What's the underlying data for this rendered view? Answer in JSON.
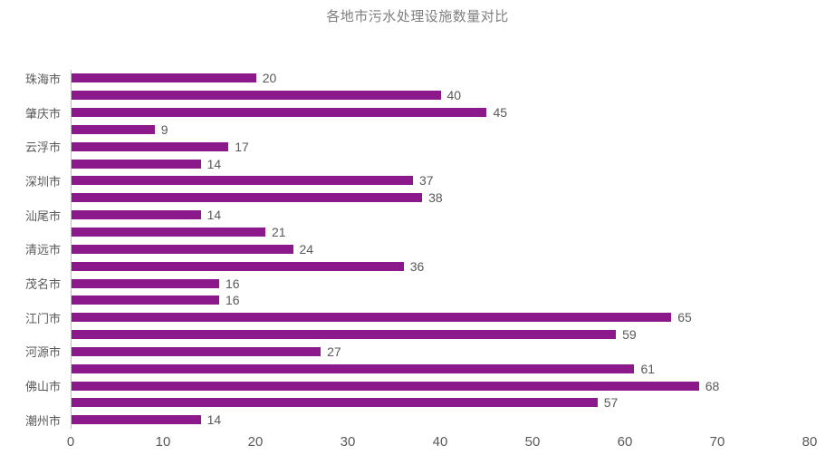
{
  "chart_data": {
    "type": "bar",
    "orientation": "horizontal",
    "title": "各地市污水处理设施数量对比",
    "xlabel": "",
    "ylabel": "",
    "xlim": [
      0,
      80
    ],
    "x_ticks": [
      0,
      10,
      20,
      30,
      40,
      50,
      60,
      70,
      80
    ],
    "grid": false,
    "legend": "none",
    "bar_color": "#8b198b",
    "label_color": "#595959",
    "title_color": "#7f7f7f",
    "axis_line_color": "#bfbfbf",
    "rows": [
      {
        "label": "珠海市",
        "value": 20
      },
      {
        "label": "",
        "value": 40
      },
      {
        "label": "肇庆市",
        "value": 45
      },
      {
        "label": "",
        "value": 9
      },
      {
        "label": "云浮市",
        "value": 17
      },
      {
        "label": "",
        "value": 14
      },
      {
        "label": "深圳市",
        "value": 37
      },
      {
        "label": "",
        "value": 38
      },
      {
        "label": "汕尾市",
        "value": 14
      },
      {
        "label": "",
        "value": 21
      },
      {
        "label": "清远市",
        "value": 24
      },
      {
        "label": "",
        "value": 36
      },
      {
        "label": "茂名市",
        "value": 16
      },
      {
        "label": "",
        "value": 16
      },
      {
        "label": "江门市",
        "value": 65
      },
      {
        "label": "",
        "value": 59
      },
      {
        "label": "河源市",
        "value": 27
      },
      {
        "label": "",
        "value": 61
      },
      {
        "label": "佛山市",
        "value": 68
      },
      {
        "label": "",
        "value": 57
      },
      {
        "label": "潮州市",
        "value": 14
      }
    ]
  }
}
